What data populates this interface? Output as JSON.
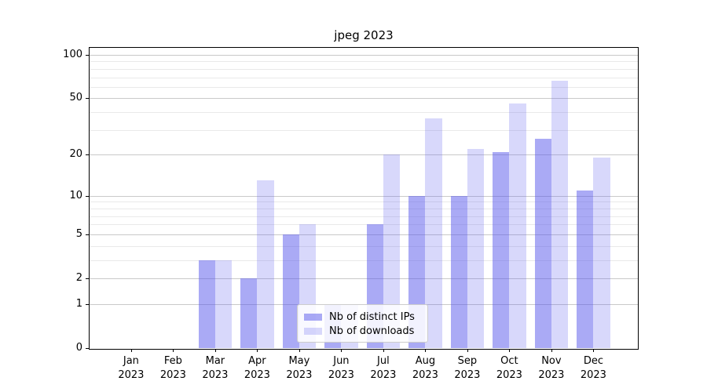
{
  "window": {
    "background": "#ffffff"
  },
  "chart_data": {
    "type": "bar",
    "title": "jpeg 2023",
    "categories": [
      "Jan 2023",
      "Feb 2023",
      "Mar 2023",
      "Apr 2023",
      "May 2023",
      "Jun 2023",
      "Jul 2023",
      "Aug 2023",
      "Sep 2023",
      "Oct 2023",
      "Nov 2023",
      "Dec 2023"
    ],
    "series": [
      {
        "name": "Nb of distinct IPs",
        "color": "rgba(85,85,235,0.5)",
        "values": [
          0,
          0,
          3,
          2,
          5,
          1,
          6,
          10,
          10,
          21,
          26,
          11
        ]
      },
      {
        "name": "Nb of downloads",
        "color": "rgba(90,90,240,0.24)",
        "values": [
          0,
          0,
          3,
          13,
          6,
          1,
          20,
          36,
          22,
          46,
          66,
          19
        ]
      }
    ],
    "xlabel": "",
    "ylabel": "",
    "yscale": "log1p",
    "ylim": [
      0,
      113
    ],
    "yticks": [
      0,
      1,
      2,
      5,
      10,
      20,
      50,
      100
    ],
    "minor_yticks": [
      3,
      4,
      6,
      7,
      8,
      9,
      30,
      40,
      60,
      70,
      80,
      90
    ],
    "grid": true,
    "legend_position": "lower center"
  }
}
